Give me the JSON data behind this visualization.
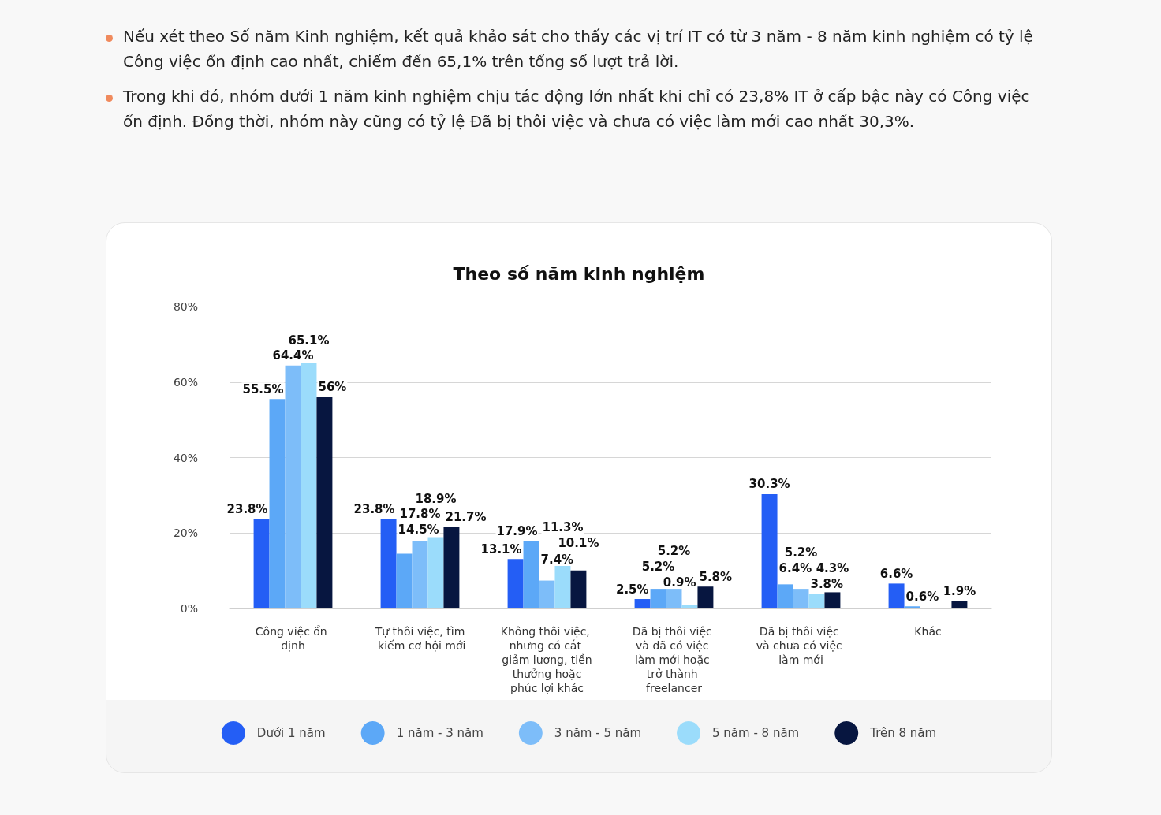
{
  "chart_data": {
    "type": "bar",
    "title": "Theo số năm kinh nghiệm",
    "annotations": [
      "Nếu xét theo Số năm Kinh nghiệm, kết quả khảo sát cho thấy các vị trí IT có từ 3 năm - 8 năm kinh nghiệm có tỷ lệ Công việc ổn định cao nhất, chiếm đến 65,1% trên tổng số lượt trả lời.",
      "Trong khi đó, nhóm dưới 1 năm kinh nghiệm chịu tác động lớn nhất khi chỉ có 23,8% IT ở cấp bậc này có Công việc ổn định. Đồng thời, nhóm này cũng có tỷ lệ Đã bị thôi việc và chưa có việc làm mới cao nhất 30,3%."
    ],
    "categories": [
      "Công việc ổn định",
      "Tự thôi việc, tìm kiếm cơ hội mới",
      "Không thôi việc, nhưng có cắt giảm lương, tiền thưởng hoặc phúc lợi khác",
      "Đã bị thôi việc và đã có việc làm mới hoặc trở thành freelancer",
      "Đã bị thôi việc và chưa có việc làm mới",
      "Khác"
    ],
    "series": [
      {
        "name": "Dưới 1 năm",
        "color": "#245ef5",
        "values": [
          23.8,
          23.8,
          13.1,
          2.5,
          30.3,
          6.6
        ],
        "value_labels": [
          "23.8%",
          "23.8%",
          "13.1%",
          "2.5%",
          "30.3%",
          "6.6%"
        ]
      },
      {
        "name": "1 năm - 3 năm",
        "color": "#5ca8f7",
        "values": [
          55.5,
          14.5,
          17.9,
          5.2,
          6.4,
          0.6
        ],
        "value_labels": [
          "55.5%",
          "14.5%",
          "17.9%",
          "5.2%",
          "6.4%",
          "0.6%"
        ]
      },
      {
        "name": "3 năm - 5 năm",
        "color": "#7dbdf9",
        "values": [
          64.4,
          17.8,
          7.4,
          5.2,
          5.2,
          null
        ],
        "value_labels": [
          "64.4%",
          "17.8%",
          "7.4%",
          "5.2%",
          "5.2%",
          null
        ]
      },
      {
        "name": "5 năm - 8 năm",
        "color": "#9bdcfb",
        "values": [
          65.1,
          18.9,
          11.3,
          0.9,
          3.8,
          null
        ],
        "value_labels": [
          "65.1%",
          "18.9%",
          "11.3%",
          "0.9%",
          "3.8%",
          null
        ]
      },
      {
        "name": "Trên 8 năm",
        "color": "#071640",
        "values": [
          56,
          21.7,
          10.1,
          5.8,
          4.3,
          1.9
        ],
        "value_labels": [
          "56%",
          "21.7%",
          "10.1%",
          "5.8%",
          "4.3%",
          "1.9%"
        ]
      }
    ],
    "ylim": [
      0,
      80
    ],
    "yticks": [
      {
        "value": 0,
        "label": "0%"
      },
      {
        "value": 20,
        "label": "20%"
      },
      {
        "value": 40,
        "label": "40%"
      },
      {
        "value": 60,
        "label": "60%"
      },
      {
        "value": 80,
        "label": "80%"
      }
    ],
    "grid": "y",
    "legend": "bottom"
  }
}
